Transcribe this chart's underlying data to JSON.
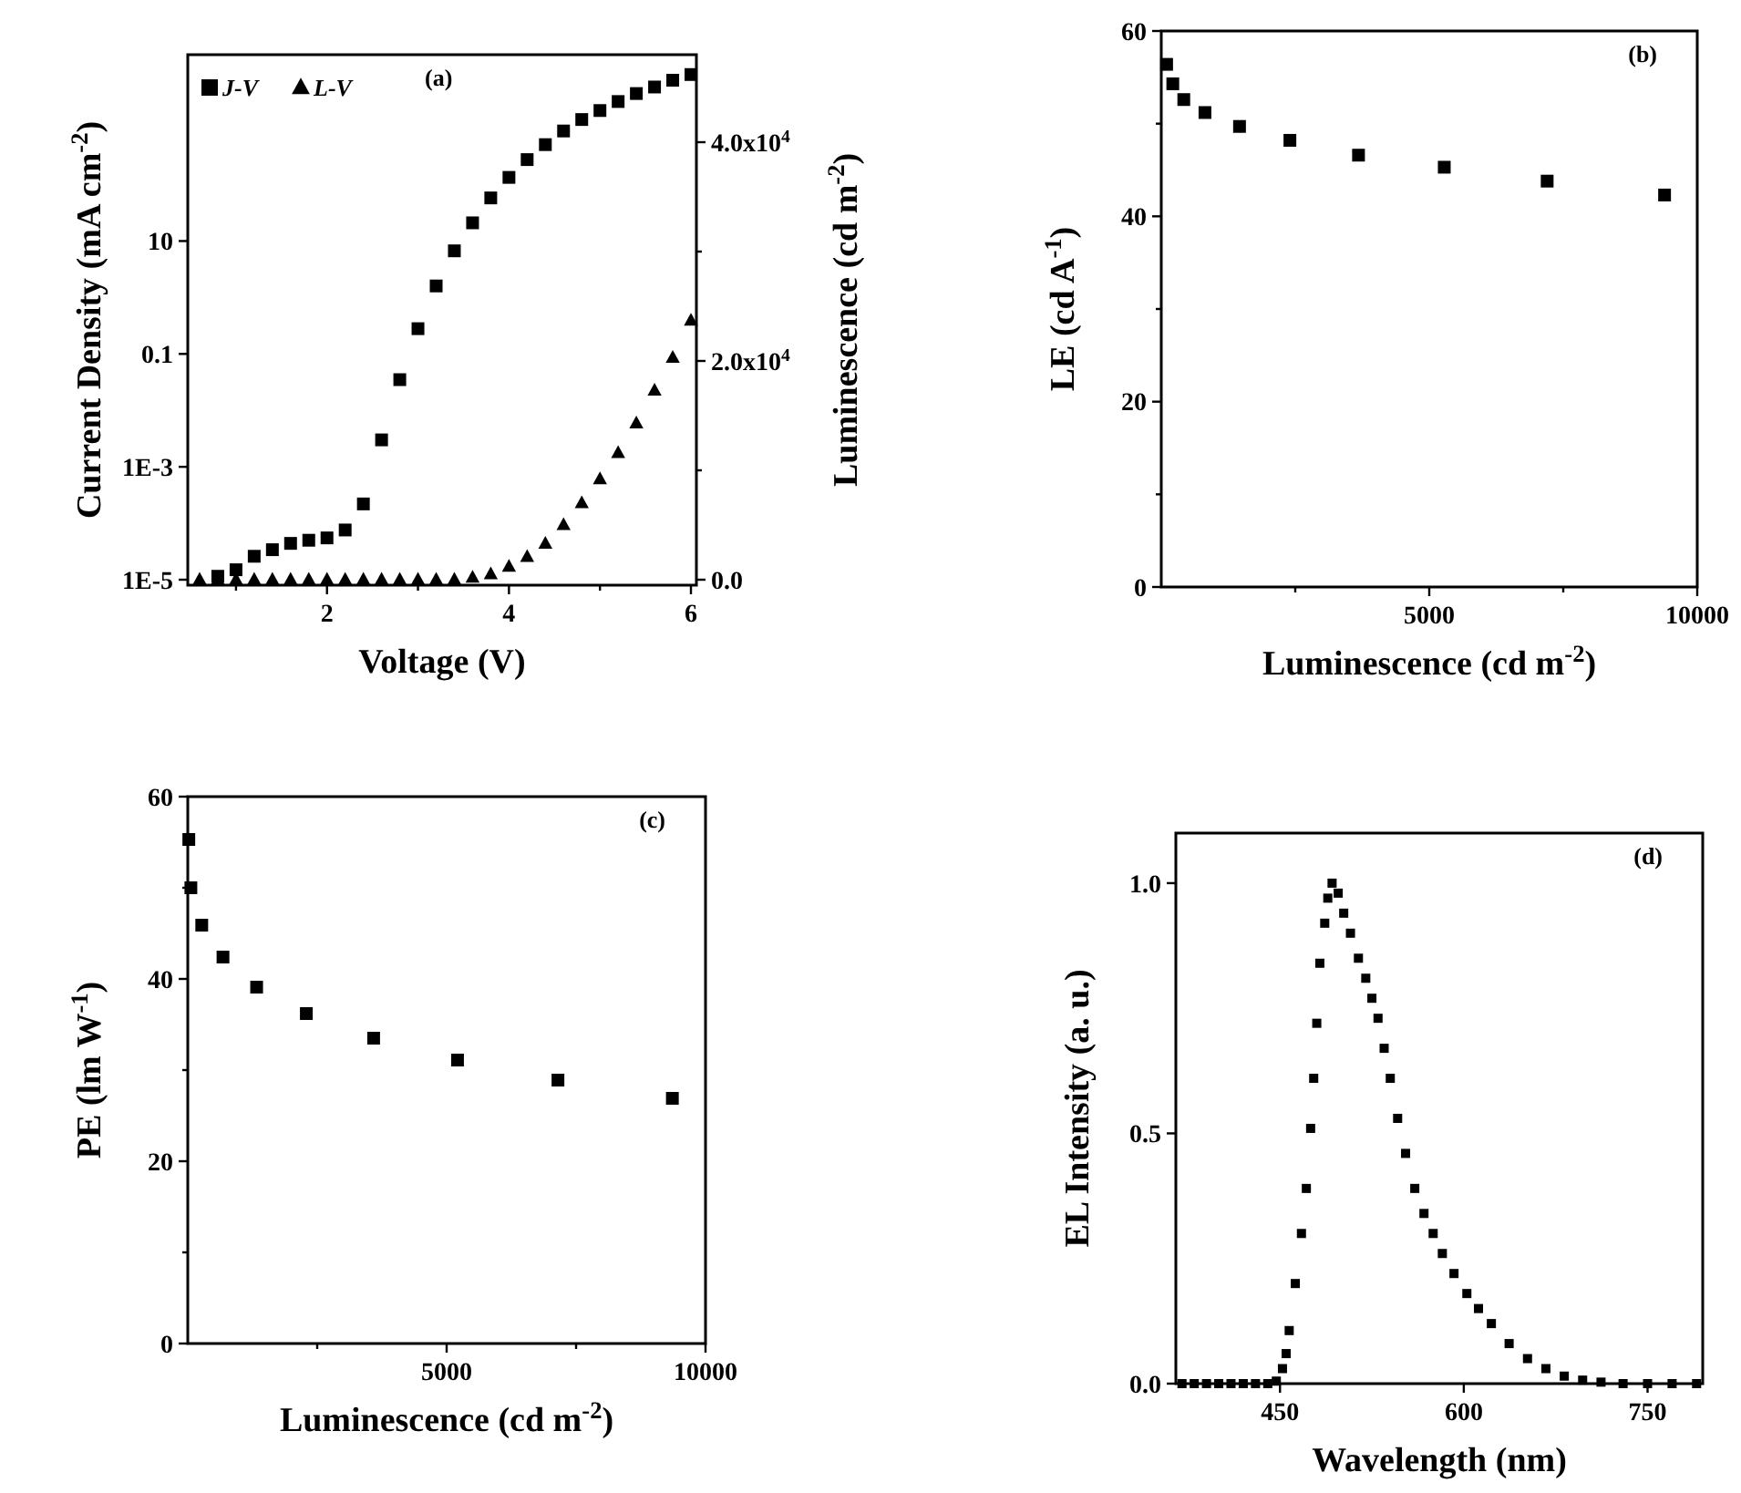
{
  "chart_data": [
    {
      "type": "scatter",
      "xlabel": "Voltage (V)",
      "ylabel": "Current Density (mA cm$^{-2}$)",
      "y2label": "Luminescence (cd m$^{-2}$)",
      "log": "y",
      "legend": "top left",
      "annotations": [
        "(a)"
      ],
      "xlim": [
        0.47,
        6.06
      ],
      "xticks": [
        {
          "value": 1,
          "label": null
        },
        2,
        {
          "value": 3,
          "label": null
        },
        4,
        {
          "value": 5,
          "label": null
        },
        6
      ],
      "ylim": [
        8e-06,
        20000.0
      ],
      "yticks": [
        {
          "value": 1e-05,
          "label": "1E-5"
        },
        {
          "value": 0.001,
          "label": "1E-3"
        },
        {
          "value": 0.1,
          "label": "0.1"
        },
        {
          "value": 10,
          "label": "10"
        }
      ],
      "y2lim": [
        -500,
        48000
      ],
      "y2ticks": [
        {
          "value": 0,
          "label": "0.0"
        },
        {
          "value": 10000,
          "label": null
        },
        {
          "value": 20000,
          "label": "2.0x10$^{4}$"
        },
        {
          "value": 30000,
          "label": null
        },
        {
          "value": 40000,
          "label": "4.0x10$^{4}$"
        }
      ],
      "series": [
        {
          "name": "J-V",
          "color": "#000000",
          "marker": "square",
          "x": [
            0.8,
            1.0,
            1.2,
            1.4,
            1.6,
            1.8,
            2.0,
            2.2,
            2.4,
            2.6,
            2.8,
            3.0,
            3.2,
            3.4,
            3.6,
            3.8,
            4.0,
            4.2,
            4.4,
            4.6,
            4.8,
            5.0,
            5.2,
            5.4,
            5.6,
            5.8,
            6.0
          ],
          "values": [
            1.15e-05,
            1.5e-05,
            2.6e-05,
            3.4e-05,
            4.4e-05,
            5e-05,
            5.5e-05,
            7.6e-05,
            0.00022,
            0.003,
            0.035,
            0.28,
            1.6,
            6.7,
            21,
            58,
            134,
            277,
            510,
            890,
            1420,
            2050,
            2960,
            4100,
            5350,
            7050,
            8900
          ]
        },
        {
          "name": "L-V",
          "color": "#000000",
          "marker": "triangle",
          "axis": "y2",
          "x": [
            0.6,
            0.8,
            1.0,
            1.2,
            1.4,
            1.6,
            1.8,
            2.0,
            2.2,
            2.4,
            2.6,
            2.8,
            3.0,
            3.2,
            3.4,
            3.6,
            3.8,
            4.0,
            4.2,
            4.4,
            4.6,
            4.8,
            5.0,
            5.2,
            5.4,
            5.6,
            5.8,
            6.0
          ],
          "values": [
            0,
            0,
            0,
            0,
            0,
            0,
            0,
            0,
            0,
            0,
            0,
            0,
            0,
            0,
            0,
            200,
            500,
            1200,
            2100,
            3300,
            5000,
            7000,
            9200,
            11600,
            14300,
            17300,
            20300,
            23700
          ]
        }
      ]
    },
    {
      "type": "scatter",
      "xlabel": "Luminescence (cd m$^{-2}$)",
      "ylabel": "LE (cd A$^{-1}$)",
      "annotations": [
        "(b)"
      ],
      "xlim": [
        0,
        10000
      ],
      "xticks": [
        {
          "value": 2500,
          "label": null
        },
        5000,
        {
          "value": 7500,
          "label": null
        },
        10000
      ],
      "ylim": [
        0,
        60
      ],
      "yticks": [
        0,
        {
          "value": 10,
          "label": null
        },
        20,
        {
          "value": 30,
          "label": null
        },
        40,
        {
          "value": 50,
          "label": null
        },
        60
      ],
      "series": [
        {
          "color": "#000000",
          "marker": "square",
          "x": [
            100,
            215,
            420,
            815,
            1460,
            2400,
            3680,
            5280,
            7200,
            9390
          ],
          "values": [
            56.4,
            54.3,
            52.6,
            51.2,
            49.7,
            48.2,
            46.6,
            45.3,
            43.8,
            42.3
          ]
        }
      ]
    },
    {
      "type": "scatter",
      "xlabel": "Luminescence (cd m$^{-2}$)",
      "ylabel": "PE (lm W$^{-1}$)",
      "annotations": [
        "(c)"
      ],
      "xlim": [
        0,
        10000
      ],
      "xticks": [
        {
          "value": 2500,
          "label": null
        },
        5000,
        {
          "value": 7500,
          "label": null
        },
        10000
      ],
      "ylim": [
        0,
        60
      ],
      "yticks": [
        0,
        {
          "value": 10,
          "label": null
        },
        20,
        {
          "value": 30,
          "label": null
        },
        40,
        {
          "value": 50,
          "label": null
        },
        60
      ],
      "series": [
        {
          "color": "#000000",
          "marker": "square",
          "x": [
            20,
            60,
            270,
            680,
            1330,
            2290,
            3590,
            5210,
            7150,
            9360
          ],
          "values": [
            55.3,
            50.0,
            45.9,
            42.4,
            39.1,
            36.2,
            33.5,
            31.1,
            28.9,
            26.9
          ]
        }
      ]
    },
    {
      "type": "scatter",
      "xlabel": "Wavelength (nm)",
      "ylabel": "EL Intensity (a. u.)",
      "annotations": [
        "(d)"
      ],
      "xlim": [
        365,
        795
      ],
      "xticks": [
        450,
        600,
        750
      ],
      "ylim": [
        0,
        1.1
      ],
      "yticks": [
        {
          "value": 0,
          "label": "0.0"
        },
        {
          "value": 0.5,
          "label": "0.5"
        },
        {
          "value": 1,
          "label": "1.0"
        }
      ],
      "series": [
        {
          "color": "#000000",
          "marker": "square",
          "x": [
            370,
            380,
            390,
            400,
            410,
            420,
            430,
            440,
            447,
            452,
            455,
            457.5,
            462.5,
            467.5,
            471.5,
            475,
            477.5,
            480,
            482.5,
            486.5,
            489,
            492.5,
            497.5,
            502,
            507.5,
            514,
            520,
            525,
            530,
            535,
            540,
            546,
            552.5,
            560,
            567.5,
            575,
            582.5,
            592,
            602.5,
            612,
            622.5,
            637,
            652,
            667,
            682,
            697,
            712,
            730,
            750,
            770,
            790
          ],
          "values": [
            0,
            0,
            0,
            0,
            0,
            0,
            0,
            0,
            0.005,
            0.03,
            0.06,
            0.106,
            0.2,
            0.3,
            0.39,
            0.51,
            0.61,
            0.72,
            0.84,
            0.92,
            0.97,
            1.0,
            0.98,
            0.94,
            0.9,
            0.85,
            0.81,
            0.77,
            0.73,
            0.67,
            0.61,
            0.53,
            0.46,
            0.39,
            0.34,
            0.3,
            0.26,
            0.22,
            0.18,
            0.15,
            0.12,
            0.08,
            0.05,
            0.03,
            0.015,
            0.007,
            0.003,
            0,
            0,
            0,
            0
          ]
        }
      ]
    }
  ]
}
